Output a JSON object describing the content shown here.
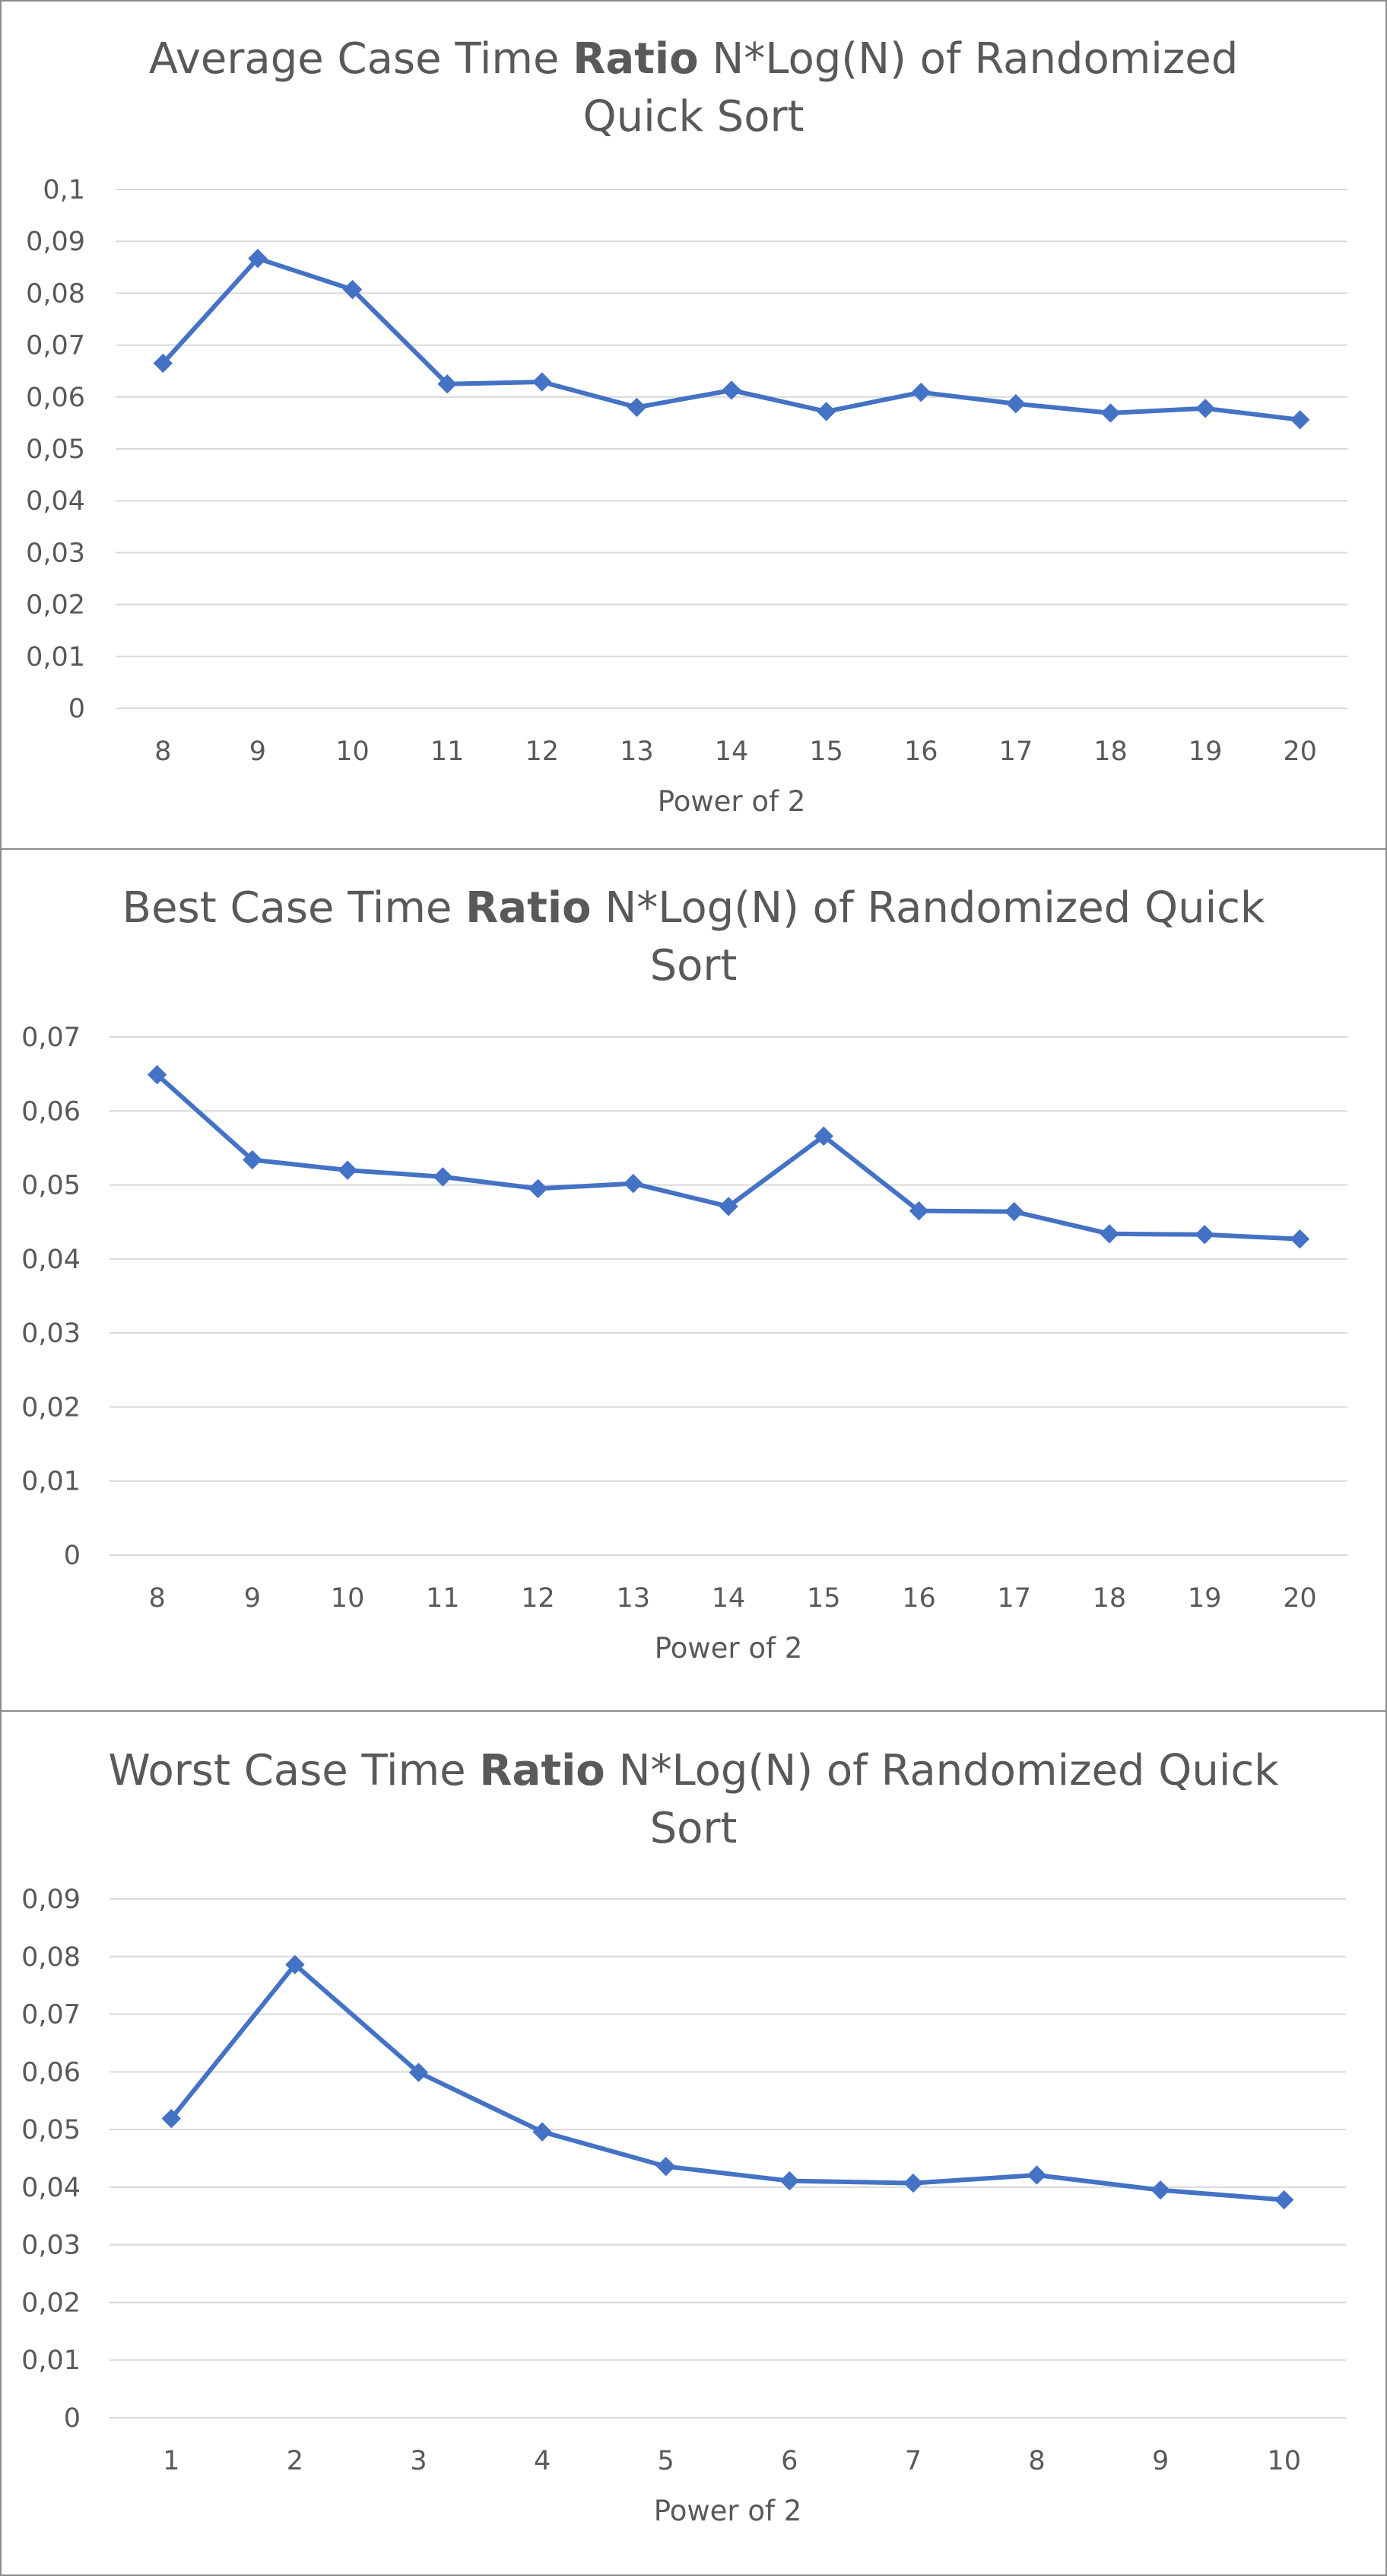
{
  "charts": [
    {
      "chart_data": {
        "type": "line",
        "title_parts": [
          {
            "text": "Average Case Time ",
            "bold": false
          },
          {
            "text": "Ratio",
            "bold": true
          },
          {
            "text": " N*Log(N) of Randomized",
            "bold": false
          },
          {
            "text": "Quick Sort",
            "bold": false,
            "newline": true
          }
        ],
        "xlabel": "Power of 2",
        "ylabel": "",
        "categories": [
          "8",
          "9",
          "10",
          "11",
          "12",
          "13",
          "14",
          "15",
          "16",
          "17",
          "18",
          "19",
          "20"
        ],
        "series": [
          {
            "values": [
              0.0665,
              0.0867,
              0.0807,
              0.0625,
              0.0629,
              0.058,
              0.0613,
              0.0572,
              0.0609,
              0.0587,
              0.0569,
              0.0578,
              0.0556
            ]
          }
        ],
        "ylim": [
          0,
          0.1
        ],
        "yticks": [
          "0",
          "0,01",
          "0,02",
          "0,03",
          "0,04",
          "0,05",
          "0,06",
          "0,07",
          "0,08",
          "0,09",
          "0,1"
        ],
        "grid": true,
        "color": "#4472c4"
      }
    },
    {
      "chart_data": {
        "type": "line",
        "title_parts": [
          {
            "text": "Best Case Time ",
            "bold": false
          },
          {
            "text": "Ratio",
            "bold": true
          },
          {
            "text": " N*Log(N) of Randomized Quick",
            "bold": false
          },
          {
            "text": "Sort",
            "bold": false,
            "newline": true
          }
        ],
        "xlabel": "Power of 2",
        "ylabel": "",
        "categories": [
          "8",
          "9",
          "10",
          "11",
          "12",
          "13",
          "14",
          "15",
          "16",
          "17",
          "18",
          "19",
          "20"
        ],
        "series": [
          {
            "values": [
              0.0649,
              0.0534,
              0.052,
              0.0511,
              0.0495,
              0.0502,
              0.0471,
              0.0566,
              0.0465,
              0.0464,
              0.0434,
              0.0433,
              0.0427
            ]
          }
        ],
        "ylim": [
          0,
          0.07
        ],
        "yticks": [
          "0",
          "0,01",
          "0,02",
          "0,03",
          "0,04",
          "0,05",
          "0,06",
          "0,07"
        ],
        "grid": true,
        "color": "#4472c4"
      }
    },
    {
      "chart_data": {
        "type": "line",
        "title_parts": [
          {
            "text": "Worst Case Time ",
            "bold": false
          },
          {
            "text": "Ratio",
            "bold": true
          },
          {
            "text": " N*Log(N) of Randomized Quick",
            "bold": false
          },
          {
            "text": "Sort",
            "bold": false,
            "newline": true
          }
        ],
        "xlabel": "Power of 2",
        "ylabel": "",
        "categories": [
          "1",
          "2",
          "3",
          "4",
          "5",
          "6",
          "7",
          "8",
          "9",
          "10"
        ],
        "series": [
          {
            "values": [
              0.0519,
              0.0786,
              0.0599,
              0.0496,
              0.0436,
              0.0411,
              0.0407,
              0.0421,
              0.0395,
              0.0378
            ]
          }
        ],
        "ylim": [
          0,
          0.09
        ],
        "yticks": [
          "0",
          "0,01",
          "0,02",
          "0,03",
          "0,04",
          "0,05",
          "0,06",
          "0,07",
          "0,08",
          "0,09"
        ],
        "grid": true,
        "color": "#4472c4"
      }
    }
  ]
}
